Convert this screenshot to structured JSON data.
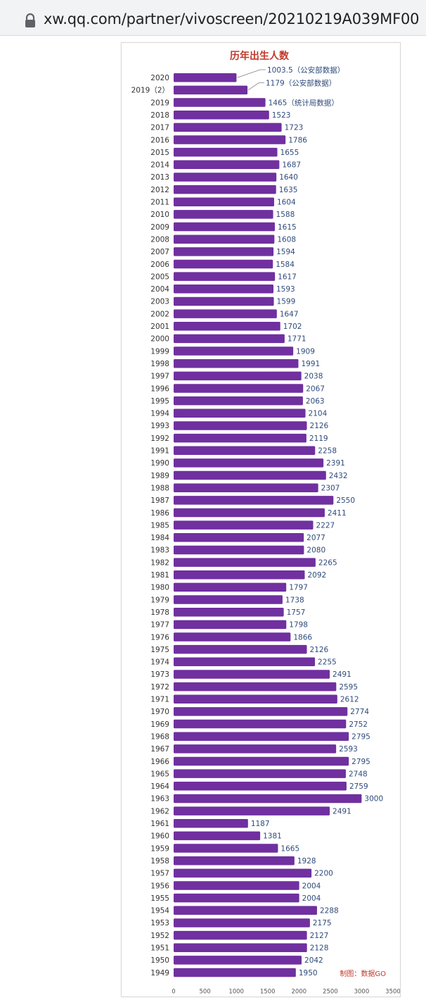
{
  "browser": {
    "url": "xw.qq.com/partner/vivoscreen/20210219A039MF00",
    "icon": "lock-icon"
  },
  "chart_data": {
    "type": "bar",
    "orientation": "horizontal",
    "title": "历年出生人数",
    "source_note": "制图：数据GO",
    "bar_color": "#7030a0",
    "title_color": "#c0392b",
    "label_color": "#2e4a7a",
    "xlim": [
      0,
      3500
    ],
    "xticks": [
      "0",
      "500",
      "1000",
      "1500",
      "2000",
      "2500",
      "3000",
      "3500"
    ],
    "grid": false,
    "legend": "none",
    "categories": [
      "2020",
      "2019（2）",
      "2019",
      "2018",
      "2017",
      "2016",
      "2015",
      "2014",
      "2013",
      "2012",
      "2011",
      "2010",
      "2009",
      "2008",
      "2007",
      "2006",
      "2005",
      "2004",
      "2003",
      "2002",
      "2001",
      "2000",
      "1999",
      "1998",
      "1997",
      "1996",
      "1995",
      "1994",
      "1993",
      "1992",
      "1991",
      "1990",
      "1989",
      "1988",
      "1987",
      "1986",
      "1985",
      "1984",
      "1983",
      "1982",
      "1981",
      "1980",
      "1979",
      "1978",
      "1977",
      "1976",
      "1975",
      "1974",
      "1973",
      "1972",
      "1971",
      "1970",
      "1969",
      "1968",
      "1967",
      "1966",
      "1965",
      "1964",
      "1963",
      "1962",
      "1961",
      "1960",
      "1959",
      "1958",
      "1957",
      "1956",
      "1955",
      "1954",
      "1953",
      "1952",
      "1951",
      "1950",
      "1949"
    ],
    "values": [
      1003.5,
      1179,
      1465,
      1523,
      1723,
      1786,
      1655,
      1687,
      1640,
      1635,
      1604,
      1588,
      1615,
      1608,
      1594,
      1584,
      1617,
      1593,
      1599,
      1647,
      1702,
      1771,
      1909,
      1991,
      2038,
      2067,
      2063,
      2104,
      2126,
      2119,
      2258,
      2391,
      2432,
      2307,
      2550,
      2411,
      2227,
      2077,
      2080,
      2265,
      2092,
      1797,
      1738,
      1757,
      1798,
      1866,
      2126,
      2255,
      2491,
      2595,
      2612,
      2774,
      2752,
      2795,
      2593,
      2795,
      2748,
      2759,
      3000,
      2491,
      1187,
      1381,
      1665,
      1928,
      2200,
      2004,
      2004,
      2288,
      2175,
      2127,
      2128,
      2042,
      1950
    ],
    "value_labels": [
      "1003.5（公安部数据）",
      "1179（公安部数据）",
      "1465（统计局数据）",
      "1523",
      "1723",
      "1786",
      "1655",
      "1687",
      "1640",
      "1635",
      "1604",
      "1588",
      "1615",
      "1608",
      "1594",
      "1584",
      "1617",
      "1593",
      "1599",
      "1647",
      "1702",
      "1771",
      "1909",
      "1991",
      "2038",
      "2067",
      "2063",
      "2104",
      "2126",
      "2119",
      "2258",
      "2391",
      "2432",
      "2307",
      "2550",
      "2411",
      "2227",
      "2077",
      "2080",
      "2265",
      "2092",
      "1797",
      "1738",
      "1757",
      "1798",
      "1866",
      "2126",
      "2255",
      "2491",
      "2595",
      "2612",
      "2774",
      "2752",
      "2795",
      "2593",
      "2795",
      "2748",
      "2759",
      "3000",
      "2491",
      "1187",
      "1381",
      "1665",
      "1928",
      "2200",
      "2004",
      "2004",
      "2288",
      "2175",
      "2127",
      "2128",
      "2042",
      "1950"
    ]
  }
}
